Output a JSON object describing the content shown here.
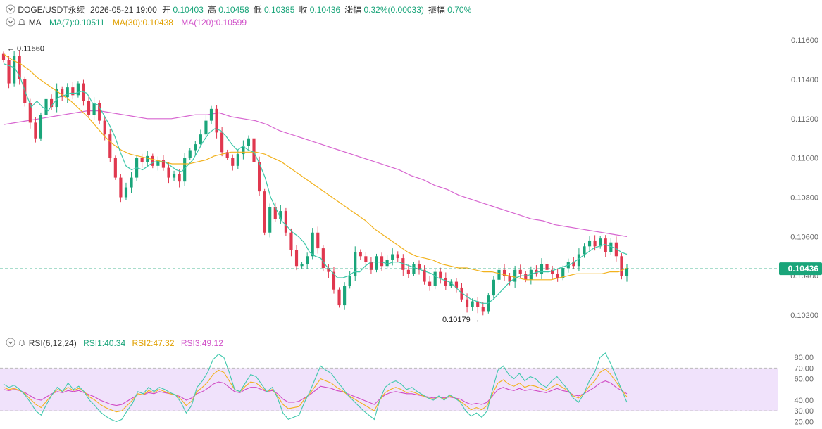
{
  "header": {
    "symbol": "DOGE/USDT永续",
    "datetime": "2026-05-21 19:00",
    "open_label": "开",
    "open": "0.10403",
    "high_label": "高",
    "high": "0.10458",
    "low_label": "低",
    "low": "0.10385",
    "close_label": "收",
    "close": "0.10436",
    "change_label": "涨幅",
    "change": "0.32%(0.00033)",
    "amplitude_label": "振幅",
    "amplitude": "0.70%"
  },
  "ma_legend": {
    "name": "MA",
    "ma7": "MA(7):0.10511",
    "ma30": "MA(30):0.10438",
    "ma120": "MA(120):0.10599"
  },
  "rsi_legend": {
    "name": "RSI(6,12,24)",
    "rsi1": "RSI1:40.34",
    "rsi2": "RSI2:47.32",
    "rsi3": "RSI3:49.12"
  },
  "colors": {
    "up": "#1aa57a",
    "down": "#e0384f",
    "ma7": "#3cc7a8",
    "ma30": "#f2b21e",
    "ma120": "#d765d0",
    "rsi1": "#40c9ad",
    "rsi2": "#f2b21e",
    "rsi3": "#d04ac4",
    "rsi_band": "#f0e2fb",
    "last_price": "#1aa57a"
  },
  "chart_data": [
    {
      "type": "candlestick",
      "y_ticks": [
        "0.11600",
        "0.11400",
        "0.11200",
        "0.11000",
        "0.10800",
        "0.10600",
        "0.10400",
        "0.10200"
      ],
      "ylim": [
        0.1015,
        0.1169
      ],
      "last_price": "0.10436",
      "max_annotation": "0.11560",
      "min_annotation": "0.10179",
      "closes": [
        0.115,
        0.1138,
        0.1152,
        0.114,
        0.1128,
        0.1118,
        0.111,
        0.1122,
        0.113,
        0.1126,
        0.1135,
        0.1131,
        0.1136,
        0.1132,
        0.1138,
        0.1129,
        0.1122,
        0.1128,
        0.1119,
        0.1112,
        0.11,
        0.109,
        0.108,
        0.1085,
        0.109,
        0.11,
        0.1098,
        0.1101,
        0.1096,
        0.1099,
        0.1095,
        0.109,
        0.1092,
        0.1088,
        0.11,
        0.1104,
        0.1107,
        0.1112,
        0.1119,
        0.1125,
        0.1113,
        0.1103,
        0.11,
        0.1096,
        0.1102,
        0.1106,
        0.111,
        0.1098,
        0.1083,
        0.1062,
        0.1075,
        0.1069,
        0.1073,
        0.1062,
        0.1053,
        0.1045,
        0.1046,
        0.105,
        0.1062,
        0.1054,
        0.1044,
        0.1042,
        0.1033,
        0.1025,
        0.1035,
        0.104,
        0.1052,
        0.105,
        0.1047,
        0.1043,
        0.105,
        0.1045,
        0.1048,
        0.1051,
        0.1049,
        0.1043,
        0.1041,
        0.1046,
        0.1043,
        0.1037,
        0.1035,
        0.1042,
        0.1039,
        0.1035,
        0.1037,
        0.1034,
        0.1028,
        0.1024,
        0.1027,
        0.1024,
        0.1022,
        0.103,
        0.1038,
        0.1043,
        0.104,
        0.1037,
        0.1043,
        0.1041,
        0.1038,
        0.1043,
        0.1041,
        0.1046,
        0.1043,
        0.1041,
        0.1039,
        0.1044,
        0.1047,
        0.1045,
        0.1051,
        0.1055,
        0.1058,
        0.1055,
        0.1059,
        0.1052,
        0.1057,
        0.105,
        0.104,
        0.1044
      ],
      "ma7": [
        0.1148,
        0.1147,
        0.1146,
        0.1141,
        0.1133,
        0.1126,
        0.1129,
        0.1126,
        0.1124,
        0.1128,
        0.1131,
        0.1132,
        0.1133,
        0.1133,
        0.1134,
        0.1133,
        0.1128,
        0.1127,
        0.1122,
        0.1117,
        0.1111,
        0.1103,
        0.1096,
        0.1094,
        0.1095,
        0.1094,
        0.1096,
        0.1098,
        0.1098,
        0.1098,
        0.1096,
        0.1094,
        0.1093,
        0.1096,
        0.1099,
        0.1104,
        0.1109,
        0.1113,
        0.1115,
        0.1114,
        0.1111,
        0.1107,
        0.1104,
        0.1106,
        0.1104,
        0.1103,
        0.1097,
        0.109,
        0.108,
        0.1074,
        0.1068,
        0.1065,
        0.1062,
        0.106,
        0.1057,
        0.1052,
        0.105,
        0.1049,
        0.1045,
        0.1042,
        0.1039,
        0.1039,
        0.104,
        0.1042,
        0.1042,
        0.1045,
        0.1047,
        0.1047,
        0.1047,
        0.1046,
        0.1047,
        0.1047,
        0.1046,
        0.1045,
        0.1044,
        0.1043,
        0.1042,
        0.1041,
        0.1039,
        0.1038,
        0.1037,
        0.1035,
        0.1032,
        0.103,
        0.1028,
        0.1027,
        0.1026,
        0.1026,
        0.1028,
        0.1031,
        0.1034,
        0.1037,
        0.1039,
        0.104,
        0.104,
        0.1041,
        0.1042,
        0.1042,
        0.1042,
        0.1043,
        0.1044,
        0.1045,
        0.1046,
        0.1048,
        0.105,
        0.1052,
        0.1054,
        0.1055,
        0.1056,
        0.1055,
        0.1054,
        0.1052,
        0.1051
      ],
      "ma30": [
        0.1153,
        0.115,
        0.1148,
        0.1145,
        0.1141,
        0.1138,
        0.1135,
        0.1132,
        0.1129,
        0.1125,
        0.1121,
        0.1116,
        0.1111,
        0.1107,
        0.1104,
        0.1102,
        0.1101,
        0.11,
        0.1099,
        0.1098,
        0.1097,
        0.1097,
        0.1097,
        0.1098,
        0.1099,
        0.1101,
        0.1102,
        0.1103,
        0.1103,
        0.1103,
        0.1103,
        0.1102,
        0.11,
        0.1098,
        0.1095,
        0.1092,
        0.1089,
        0.1086,
        0.1083,
        0.108,
        0.1077,
        0.1074,
        0.1071,
        0.1068,
        0.1064,
        0.1061,
        0.1058,
        0.1055,
        0.1052,
        0.105,
        0.1049,
        0.1048,
        0.1046,
        0.1045,
        0.1044,
        0.1044,
        0.1043,
        0.1042,
        0.1042,
        0.1041,
        0.104,
        0.1039,
        0.1038,
        0.1038,
        0.1038,
        0.1038,
        0.1039,
        0.104,
        0.1041,
        0.1041,
        0.1041,
        0.1041,
        0.1042,
        0.1042,
        0.1044
      ],
      "ma120": [
        0.1117,
        0.1118,
        0.1119,
        0.112,
        0.1121,
        0.1122,
        0.1123,
        0.1124,
        0.1124,
        0.1123,
        0.1122,
        0.1121,
        0.112,
        0.112,
        0.112,
        0.1121,
        0.1122,
        0.1122,
        0.1123,
        0.1121,
        0.112,
        0.1119,
        0.1117,
        0.1114,
        0.1112,
        0.111,
        0.1108,
        0.1106,
        0.1104,
        0.1102,
        0.11,
        0.1098,
        0.1096,
        0.1094,
        0.1091,
        0.1089,
        0.1086,
        0.1084,
        0.1081,
        0.1079,
        0.1077,
        0.1075,
        0.1073,
        0.1071,
        0.1069,
        0.1068,
        0.1066,
        0.1065,
        0.1064,
        0.1063,
        0.1062,
        0.1061,
        0.106
      ]
    },
    {
      "type": "line",
      "y_ticks": [
        "80.00",
        "70.00",
        "60.00",
        "40.00",
        "30.00",
        "20.00"
      ],
      "ylim": [
        15,
        86
      ],
      "band": [
        30,
        70
      ],
      "series": [
        {
          "name": "RSI1",
          "values": [
            55,
            52,
            54,
            50,
            45,
            38,
            30,
            26,
            36,
            45,
            52,
            48,
            56,
            50,
            53,
            48,
            40,
            35,
            29,
            25,
            22,
            20,
            22,
            30,
            37,
            48,
            46,
            52,
            48,
            52,
            50,
            47,
            45,
            38,
            28,
            35,
            52,
            58,
            66,
            78,
            83,
            80,
            66,
            50,
            48,
            56,
            64,
            62,
            55,
            48,
            52,
            42,
            28,
            22,
            24,
            26,
            38,
            48,
            60,
            72,
            68,
            65,
            58,
            52,
            45,
            40,
            35,
            30,
            26,
            22,
            40,
            52,
            56,
            58,
            55,
            50,
            52,
            48,
            45,
            42,
            40,
            44,
            40,
            45,
            42,
            38,
            30,
            25,
            28,
            24,
            30,
            50,
            68,
            72,
            64,
            60,
            65,
            58,
            62,
            60,
            55,
            52,
            58,
            62,
            56,
            50,
            42,
            38,
            46,
            58,
            66,
            80,
            84,
            74,
            62,
            50,
            38
          ]
        },
        {
          "name": "RSI2",
          "values": [
            52,
            50,
            51,
            49,
            46,
            41,
            36,
            33,
            39,
            45,
            50,
            48,
            52,
            49,
            51,
            48,
            43,
            40,
            36,
            33,
            31,
            29,
            30,
            35,
            40,
            46,
            45,
            49,
            47,
            50,
            48,
            46,
            45,
            41,
            35,
            39,
            48,
            52,
            57,
            64,
            68,
            66,
            58,
            50,
            48,
            53,
            57,
            56,
            52,
            48,
            50,
            44,
            36,
            32,
            33,
            34,
            41,
            46,
            53,
            60,
            58,
            56,
            52,
            49,
            45,
            42,
            39,
            36,
            33,
            30,
            40,
            47,
            50,
            52,
            50,
            47,
            48,
            46,
            44,
            42,
            41,
            43,
            41,
            44,
            42,
            39,
            35,
            31,
            33,
            31,
            35,
            46,
            56,
            59,
            55,
            53,
            56,
            52,
            54,
            53,
            51,
            49,
            52,
            55,
            52,
            49,
            44,
            42,
            46,
            53,
            58,
            66,
            69,
            64,
            57,
            50,
            43
          ]
        },
        {
          "name": "RSI3",
          "values": [
            50,
            49,
            50,
            49,
            47,
            44,
            41,
            40,
            43,
            46,
            48,
            47,
            49,
            48,
            49,
            47,
            45,
            43,
            40,
            38,
            36,
            35,
            36,
            39,
            42,
            45,
            45,
            47,
            46,
            48,
            47,
            46,
            45,
            43,
            40,
            42,
            46,
            48,
            51,
            55,
            57,
            56,
            52,
            48,
            47,
            50,
            52,
            52,
            50,
            48,
            49,
            46,
            41,
            38,
            38,
            39,
            42,
            45,
            49,
            53,
            52,
            51,
            49,
            48,
            46,
            44,
            42,
            40,
            38,
            36,
            41,
            45,
            47,
            48,
            47,
            46,
            46,
            45,
            44,
            43,
            42,
            43,
            42,
            43,
            42,
            41,
            38,
            36,
            37,
            36,
            38,
            44,
            50,
            52,
            50,
            49,
            51,
            49,
            50,
            49,
            48,
            47,
            49,
            51,
            49,
            48,
            45,
            44,
            46,
            49,
            52,
            56,
            58,
            56,
            52,
            49,
            46
          ]
        }
      ]
    }
  ]
}
